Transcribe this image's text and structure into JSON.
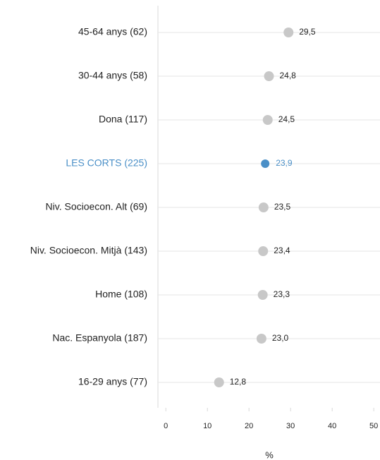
{
  "chart_data": {
    "type": "dot",
    "categories": [
      "45-64 anys (62)",
      "30-44 anys (58)",
      "Dona (117)",
      "LES CORTS (225)",
      "Niv. Socioecon. Alt (69)",
      "Niv. Socioecon. Mitjà (143)",
      "Home (108)",
      "Nac. Espanyola (187)",
      "16-29 anys (77)"
    ],
    "values": [
      29.5,
      24.8,
      24.5,
      23.9,
      23.5,
      23.4,
      23.3,
      23.0,
      12.8
    ],
    "value_labels": [
      "29,5",
      "24,8",
      "24,5",
      "23,9",
      "23,5",
      "23,4",
      "23,3",
      "23,0",
      "12,8"
    ],
    "color": "#c8c8c8",
    "colors": [
      "#c8c8c8",
      "#c8c8c8",
      "#c8c8c8",
      "#4a8fc7",
      "#c8c8c8",
      "#c8c8c8",
      "#c8c8c8",
      "#c8c8c8",
      "#c8c8c8"
    ],
    "xlabel": "%",
    "xlim": [
      -1.9,
      51.5
    ],
    "xticks": [
      0,
      10,
      20,
      30,
      40,
      50
    ],
    "grid": true
  }
}
